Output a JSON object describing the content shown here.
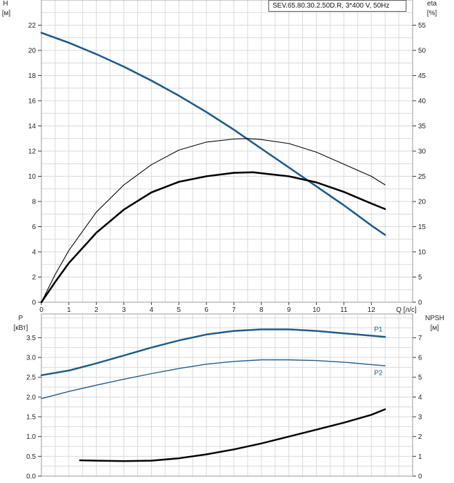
{
  "model_label": "SEV.65.80.30.2.50D.R, 3*400 V, 50Hz",
  "chart_data": [
    {
      "type": "line",
      "y_axis_left": {
        "label": "H",
        "unit": "[м]",
        "range": [
          0,
          24
        ],
        "ticks": [
          0,
          2,
          4,
          6,
          8,
          10,
          12,
          14,
          16,
          18,
          20,
          22
        ]
      },
      "y_axis_right": {
        "label": "eta",
        "unit": "[%]",
        "range": [
          0,
          60
        ],
        "ticks": [
          0,
          5,
          10,
          15,
          20,
          25,
          30,
          35,
          40,
          45,
          50,
          55
        ]
      },
      "x_axis": {
        "label": "Q [л/с]",
        "range": [
          0,
          13.5
        ],
        "ticks": [
          0,
          1,
          2,
          3,
          4,
          5,
          6,
          7,
          8,
          9,
          10,
          11,
          12
        ]
      },
      "grid": true,
      "series": [
        {
          "key": "head",
          "axis": "left",
          "color": "#1e5a8c",
          "x": [
            0,
            1,
            2,
            3,
            4,
            5,
            6,
            7,
            8,
            9,
            10,
            11,
            12,
            12.5
          ],
          "y": [
            21.4,
            20.6,
            19.7,
            18.7,
            17.6,
            16.4,
            15.1,
            13.7,
            12.2,
            10.7,
            9.2,
            7.7,
            6.1,
            5.35
          ]
        },
        {
          "key": "eta_thin",
          "axis": "right",
          "color": "#000000",
          "x": [
            0,
            0.5,
            1,
            2,
            3,
            4,
            5,
            6,
            7,
            7.5,
            8,
            9,
            10,
            11,
            12,
            12.5
          ],
          "y": [
            0,
            5.5,
            10.3,
            17.9,
            23.3,
            27.3,
            30.2,
            31.8,
            32.4,
            32.5,
            32.3,
            31.5,
            29.8,
            27.4,
            25.0,
            23.3
          ]
        },
        {
          "key": "eta_thick",
          "axis": "right",
          "color": "#000000",
          "x": [
            0,
            0.5,
            1,
            2,
            3,
            4,
            5,
            6,
            7,
            7.7,
            8,
            9,
            10,
            11,
            12,
            12.5
          ],
          "y": [
            0,
            4.0,
            7.8,
            13.8,
            18.4,
            21.8,
            23.9,
            25.0,
            25.7,
            25.8,
            25.6,
            25.0,
            23.8,
            21.9,
            19.6,
            18.5
          ]
        }
      ]
    },
    {
      "type": "line",
      "y_axis_left": {
        "label": "P",
        "unit": "[кВт]",
        "range": [
          0,
          4.1
        ],
        "ticks": [
          "0.0",
          "0.5",
          "1.0",
          "1.5",
          "2.0",
          "2.5",
          "3.0",
          "3.5"
        ]
      },
      "y_axis_right": {
        "label": "NPSH",
        "unit": "[м]",
        "range": [
          0,
          8.2
        ],
        "ticks": [
          0,
          1,
          2,
          3,
          4,
          5,
          6,
          7
        ]
      },
      "x_axis": {
        "range": [
          0,
          13.5
        ]
      },
      "grid": true,
      "series": [
        {
          "key": "p1",
          "name": "P1",
          "axis": "left",
          "color": "#1e5a8c",
          "x": [
            0,
            1,
            2,
            3,
            4,
            5,
            6,
            7,
            8,
            9,
            10,
            11,
            12,
            12.5
          ],
          "y": [
            2.55,
            2.67,
            2.85,
            3.05,
            3.25,
            3.43,
            3.58,
            3.67,
            3.71,
            3.71,
            3.67,
            3.61,
            3.55,
            3.52
          ]
        },
        {
          "key": "p2",
          "name": "P2",
          "axis": "left",
          "color": "#1e5a8c",
          "x": [
            0,
            1,
            2,
            3,
            4,
            5,
            6,
            7,
            8,
            9,
            10,
            11,
            12,
            12.5
          ],
          "y": [
            1.96,
            2.14,
            2.3,
            2.45,
            2.59,
            2.72,
            2.83,
            2.9,
            2.94,
            2.94,
            2.92,
            2.88,
            2.82,
            2.79
          ]
        },
        {
          "key": "npsh",
          "axis": "right",
          "color": "#000000",
          "x": [
            1.4,
            2,
            3,
            4,
            5,
            6,
            7,
            8,
            9,
            10,
            11,
            12,
            12.5
          ],
          "y": [
            0.8,
            0.78,
            0.76,
            0.78,
            0.9,
            1.1,
            1.35,
            1.65,
            2.0,
            2.35,
            2.7,
            3.1,
            3.38
          ]
        }
      ]
    }
  ]
}
